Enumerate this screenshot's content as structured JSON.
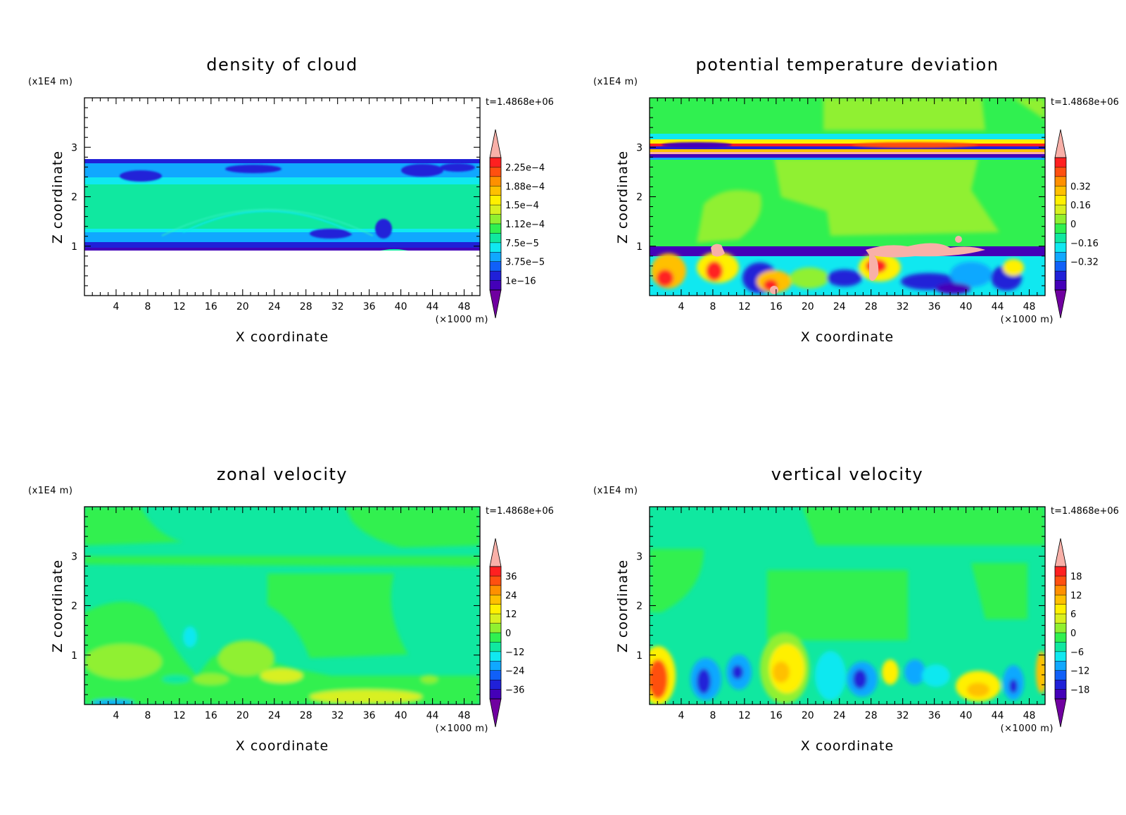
{
  "chart_data": [
    {
      "type": "heatmap",
      "title": "density of cloud",
      "xlabel": "X coordinate",
      "ylabel": "Z coordinate",
      "x_unit": "(×1000 m)",
      "y_unit": "(x1E4 m)",
      "time_label": "t=1.4868e+06",
      "xlim": [
        0,
        50
      ],
      "ylim": [
        0,
        4
      ],
      "xticks": [
        "4",
        "8",
        "12",
        "16",
        "20",
        "24",
        "28",
        "32",
        "36",
        "40",
        "44",
        "48"
      ],
      "yticks": [
        "1",
        "2",
        "3"
      ],
      "colorbar": {
        "labels": [
          "1e-16",
          "3.75e-5",
          "7.5e-5",
          "1.12e-4",
          "1.5e-4",
          "1.88e-4",
          "2.25e-4"
        ]
      }
    },
    {
      "type": "heatmap",
      "title": "potential temperature deviation",
      "xlabel": "X coordinate",
      "ylabel": "Z coordinate",
      "x_unit": "(×1000 m)",
      "y_unit": "(x1E4 m)",
      "time_label": "t=1.4868e+06",
      "xlim": [
        0,
        50
      ],
      "ylim": [
        0,
        4
      ],
      "xticks": [
        "4",
        "8",
        "12",
        "16",
        "20",
        "24",
        "28",
        "32",
        "36",
        "40",
        "44",
        "48"
      ],
      "yticks": [
        "1",
        "2",
        "3"
      ],
      "colorbar": {
        "labels": [
          "-0.32",
          "-0.16",
          "0",
          "0.16",
          "0.32"
        ]
      }
    },
    {
      "type": "heatmap",
      "title": "zonal velocity",
      "xlabel": "X coordinate",
      "ylabel": "Z coordinate",
      "x_unit": "(×1000 m)",
      "y_unit": "(x1E4 m)",
      "time_label": "t=1.4868e+06",
      "xlim": [
        0,
        50
      ],
      "ylim": [
        0,
        4
      ],
      "xticks": [
        "4",
        "8",
        "12",
        "16",
        "20",
        "24",
        "28",
        "32",
        "36",
        "40",
        "44",
        "48"
      ],
      "yticks": [
        "1",
        "2",
        "3"
      ],
      "colorbar": {
        "labels": [
          "-36",
          "-24",
          "-12",
          "0",
          "12",
          "24",
          "36"
        ]
      }
    },
    {
      "type": "heatmap",
      "title": "vertical velocity",
      "xlabel": "X coordinate",
      "ylabel": "Z coordinate",
      "x_unit": "(×1000 m)",
      "y_unit": "(x1E4 m)",
      "time_label": "t=1.4868e+06",
      "xlim": [
        0,
        50
      ],
      "ylim": [
        0,
        4
      ],
      "xticks": [
        "4",
        "8",
        "12",
        "16",
        "20",
        "24",
        "28",
        "32",
        "36",
        "40",
        "44",
        "48"
      ],
      "yticks": [
        "1",
        "2",
        "3"
      ],
      "colorbar": {
        "labels": [
          "-18",
          "-12",
          "-6",
          "0",
          "6",
          "12",
          "18"
        ]
      }
    }
  ],
  "colorbar_colors": [
    "#7000a0",
    "#4400b8",
    "#2020d8",
    "#1060f8",
    "#10a8ff",
    "#10e8f0",
    "#10e8a0",
    "#30f050",
    "#90f030",
    "#d8f020",
    "#fff000",
    "#ffc000",
    "#ff9000",
    "#ff5010",
    "#ff2020",
    "#f8b0a8"
  ]
}
